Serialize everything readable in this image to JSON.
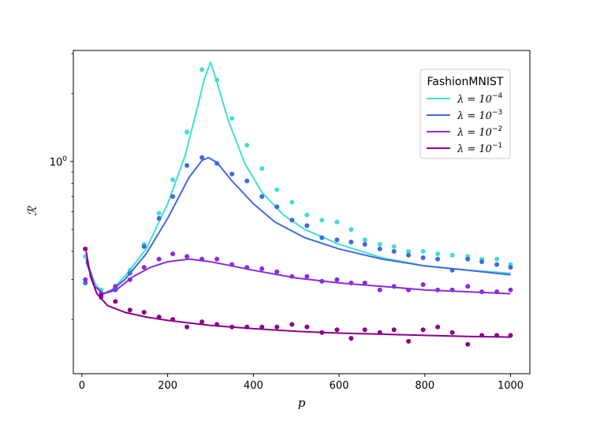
{
  "chart_data": {
    "type": "line",
    "xlabel": "p",
    "ylabel": "ℛ",
    "yscale": "log",
    "xlim": [
      -20,
      1045
    ],
    "ylim": [
      0.115,
      3.1
    ],
    "xticks": [
      0,
      200,
      400,
      600,
      800,
      1000
    ],
    "xtick_labels": [
      "0",
      "200",
      "400",
      "600",
      "800",
      "1000"
    ],
    "ytick_label": "10",
    "ytick_label_exp": "0",
    "grid": false,
    "legend": {
      "title": "FashionMNIST",
      "placement": "upper right"
    },
    "series": [
      {
        "name": "λ = 10⁻⁴",
        "label_prefix": "λ = 10",
        "label_exp": "−4",
        "color": "#40e0d0",
        "curve": [
          [
            10,
            0.37
          ],
          [
            30,
            0.29
          ],
          [
            50,
            0.26
          ],
          [
            70,
            0.27
          ],
          [
            100,
            0.31
          ],
          [
            150,
            0.41
          ],
          [
            200,
            0.65
          ],
          [
            240,
            1.05
          ],
          [
            270,
            1.75
          ],
          [
            285,
            2.3
          ],
          [
            300,
            2.75
          ],
          [
            315,
            2.25
          ],
          [
            340,
            1.55
          ],
          [
            380,
            0.98
          ],
          [
            420,
            0.73
          ],
          [
            470,
            0.58
          ],
          [
            520,
            0.5
          ],
          [
            600,
            0.43
          ],
          [
            700,
            0.375
          ],
          [
            800,
            0.345
          ],
          [
            900,
            0.33
          ],
          [
            1000,
            0.32
          ]
        ],
        "points": [
          [
            8,
            0.38
          ],
          [
            45,
            0.27
          ],
          [
            78,
            0.28
          ],
          [
            112,
            0.33
          ],
          [
            145,
            0.43
          ],
          [
            180,
            0.59
          ],
          [
            212,
            0.83
          ],
          [
            245,
            1.35
          ],
          [
            280,
            2.55
          ],
          [
            315,
            2.3
          ],
          [
            350,
            1.55
          ],
          [
            385,
            1.18
          ],
          [
            420,
            0.93
          ],
          [
            455,
            0.75
          ],
          [
            490,
            0.66
          ],
          [
            525,
            0.58
          ],
          [
            560,
            0.55
          ],
          [
            595,
            0.54
          ],
          [
            628,
            0.5
          ],
          [
            660,
            0.45
          ],
          [
            695,
            0.43
          ],
          [
            728,
            0.42
          ],
          [
            762,
            0.4
          ],
          [
            796,
            0.4
          ],
          [
            830,
            0.39
          ],
          [
            864,
            0.385
          ],
          [
            900,
            0.38
          ],
          [
            933,
            0.37
          ],
          [
            968,
            0.37
          ],
          [
            1000,
            0.35
          ]
        ]
      },
      {
        "name": "λ = 10⁻³",
        "label_prefix": "λ = 10",
        "label_exp": "−3",
        "color": "#4169e1",
        "curve": [
          [
            10,
            0.36
          ],
          [
            30,
            0.28
          ],
          [
            50,
            0.26
          ],
          [
            70,
            0.27
          ],
          [
            100,
            0.3
          ],
          [
            150,
            0.39
          ],
          [
            200,
            0.56
          ],
          [
            250,
            0.85
          ],
          [
            280,
            1.01
          ],
          [
            295,
            1.04
          ],
          [
            315,
            0.99
          ],
          [
            350,
            0.82
          ],
          [
            400,
            0.65
          ],
          [
            450,
            0.54
          ],
          [
            520,
            0.46
          ],
          [
            600,
            0.41
          ],
          [
            700,
            0.37
          ],
          [
            800,
            0.345
          ],
          [
            900,
            0.33
          ],
          [
            1000,
            0.315
          ]
        ],
        "points": [
          [
            8,
            0.29
          ],
          [
            45,
            0.25
          ],
          [
            78,
            0.27
          ],
          [
            112,
            0.32
          ],
          [
            145,
            0.42
          ],
          [
            180,
            0.56
          ],
          [
            212,
            0.7
          ],
          [
            245,
            0.96
          ],
          [
            280,
            1.04
          ],
          [
            315,
            0.98
          ],
          [
            350,
            0.88
          ],
          [
            385,
            0.82
          ],
          [
            420,
            0.7
          ],
          [
            455,
            0.63
          ],
          [
            490,
            0.55
          ],
          [
            525,
            0.52
          ],
          [
            560,
            0.46
          ],
          [
            595,
            0.45
          ],
          [
            628,
            0.44
          ],
          [
            660,
            0.43
          ],
          [
            695,
            0.41
          ],
          [
            728,
            0.4
          ],
          [
            762,
            0.385
          ],
          [
            796,
            0.375
          ],
          [
            830,
            0.37
          ],
          [
            864,
            0.33
          ],
          [
            900,
            0.37
          ],
          [
            933,
            0.36
          ],
          [
            968,
            0.35
          ],
          [
            1000,
            0.34
          ]
        ]
      },
      {
        "name": "λ = 10⁻²",
        "label_prefix": "λ = 10",
        "label_exp": "−2",
        "color": "#8a2be2",
        "curve": [
          [
            10,
            0.37
          ],
          [
            30,
            0.28
          ],
          [
            50,
            0.26
          ],
          [
            80,
            0.27
          ],
          [
            120,
            0.31
          ],
          [
            160,
            0.34
          ],
          [
            200,
            0.36
          ],
          [
            250,
            0.37
          ],
          [
            300,
            0.36
          ],
          [
            350,
            0.345
          ],
          [
            400,
            0.33
          ],
          [
            500,
            0.305
          ],
          [
            600,
            0.29
          ],
          [
            700,
            0.28
          ],
          [
            800,
            0.27
          ],
          [
            900,
            0.265
          ],
          [
            1000,
            0.26
          ]
        ],
        "points": [
          [
            8,
            0.3
          ],
          [
            45,
            0.26
          ],
          [
            78,
            0.28
          ],
          [
            112,
            0.3
          ],
          [
            145,
            0.34
          ],
          [
            180,
            0.37
          ],
          [
            212,
            0.39
          ],
          [
            245,
            0.38
          ],
          [
            280,
            0.37
          ],
          [
            315,
            0.37
          ],
          [
            350,
            0.35
          ],
          [
            385,
            0.34
          ],
          [
            420,
            0.335
          ],
          [
            455,
            0.325
          ],
          [
            490,
            0.31
          ],
          [
            525,
            0.31
          ],
          [
            560,
            0.295
          ],
          [
            595,
            0.3
          ],
          [
            628,
            0.29
          ],
          [
            660,
            0.29
          ],
          [
            695,
            0.27
          ],
          [
            728,
            0.28
          ],
          [
            762,
            0.27
          ],
          [
            796,
            0.285
          ],
          [
            830,
            0.27
          ],
          [
            864,
            0.27
          ],
          [
            900,
            0.28
          ],
          [
            933,
            0.265
          ],
          [
            968,
            0.265
          ],
          [
            1000,
            0.27
          ]
        ]
      },
      {
        "name": "λ = 10⁻¹",
        "label_prefix": "λ = 10",
        "label_exp": "−1",
        "color": "#8b008b",
        "curve": [
          [
            10,
            0.4
          ],
          [
            20,
            0.31
          ],
          [
            35,
            0.26
          ],
          [
            60,
            0.23
          ],
          [
            100,
            0.215
          ],
          [
            150,
            0.205
          ],
          [
            200,
            0.198
          ],
          [
            300,
            0.188
          ],
          [
            400,
            0.182
          ],
          [
            500,
            0.177
          ],
          [
            600,
            0.174
          ],
          [
            700,
            0.172
          ],
          [
            800,
            0.17
          ],
          [
            900,
            0.168
          ],
          [
            1000,
            0.167
          ]
        ],
        "points": [
          [
            8,
            0.41
          ],
          [
            45,
            0.255
          ],
          [
            78,
            0.24
          ],
          [
            112,
            0.22
          ],
          [
            145,
            0.215
          ],
          [
            180,
            0.205
          ],
          [
            212,
            0.2
          ],
          [
            245,
            0.185
          ],
          [
            280,
            0.195
          ],
          [
            315,
            0.19
          ],
          [
            350,
            0.185
          ],
          [
            385,
            0.185
          ],
          [
            420,
            0.185
          ],
          [
            455,
            0.185
          ],
          [
            490,
            0.19
          ],
          [
            525,
            0.185
          ],
          [
            560,
            0.175
          ],
          [
            595,
            0.18
          ],
          [
            628,
            0.165
          ],
          [
            660,
            0.18
          ],
          [
            695,
            0.175
          ],
          [
            728,
            0.18
          ],
          [
            762,
            0.16
          ],
          [
            796,
            0.18
          ],
          [
            830,
            0.185
          ],
          [
            864,
            0.175
          ],
          [
            900,
            0.155
          ],
          [
            933,
            0.17
          ],
          [
            968,
            0.17
          ],
          [
            1000,
            0.17
          ]
        ]
      }
    ]
  }
}
